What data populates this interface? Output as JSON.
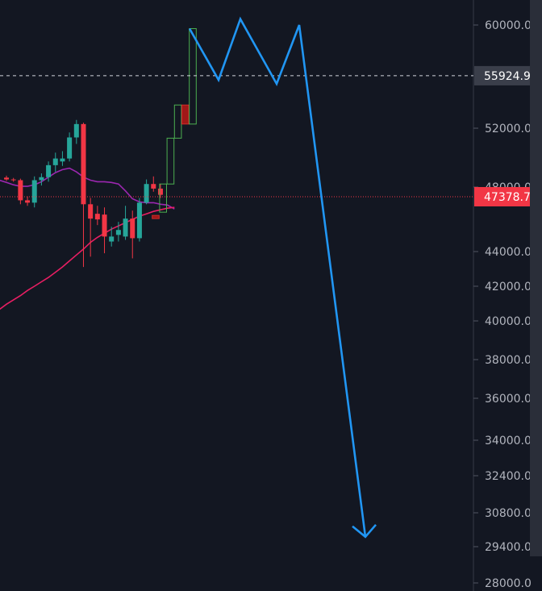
{
  "chart_data": {
    "type": "candlestick",
    "y_axis": {
      "ticks": [
        "60000.0",
        "52000.0",
        "48000.0",
        "44000.0",
        "42000.0",
        "40000.0",
        "38000.0",
        "36000.0",
        "34000.0",
        "32400.0",
        "30800.0",
        "29400.0",
        "28000.0"
      ],
      "tick_values": [
        60000,
        52000,
        48000,
        44000,
        42000,
        40000,
        38000,
        36000,
        34000,
        32400,
        30800,
        29400,
        28000
      ]
    },
    "price_labels": [
      {
        "name": "reference-price",
        "text": "55924.9",
        "value": 55924.9,
        "color": "#3a3e4a",
        "text_color": "#ffffff",
        "line": "dashed-white"
      },
      {
        "name": "last-price",
        "text": "47378.7",
        "value": 47378.7,
        "color": "#f23645",
        "text_color": "#ffffff",
        "line": "dotted-red"
      }
    ],
    "candles": [
      {
        "o": 48620,
        "h": 48750,
        "l": 48400,
        "c": 48500
      },
      {
        "o": 48500,
        "h": 48600,
        "l": 48350,
        "c": 48450
      },
      {
        "o": 48450,
        "h": 48550,
        "l": 46900,
        "c": 47150
      },
      {
        "o": 47150,
        "h": 47400,
        "l": 46800,
        "c": 47000
      },
      {
        "o": 47000,
        "h": 48700,
        "l": 46700,
        "c": 48450
      },
      {
        "o": 48450,
        "h": 48900,
        "l": 48100,
        "c": 48650
      },
      {
        "o": 48650,
        "h": 49700,
        "l": 48350,
        "c": 49450
      },
      {
        "o": 49450,
        "h": 50300,
        "l": 49000,
        "c": 49900
      },
      {
        "o": 49700,
        "h": 50400,
        "l": 49400,
        "c": 49900
      },
      {
        "o": 49900,
        "h": 51700,
        "l": 49700,
        "c": 51350
      },
      {
        "o": 51350,
        "h": 52600,
        "l": 50900,
        "c": 52300
      },
      {
        "o": 52300,
        "h": 52400,
        "l": 43100,
        "c": 46900
      },
      {
        "o": 46900,
        "h": 47300,
        "l": 43700,
        "c": 46000
      },
      {
        "o": 46300,
        "h": 46800,
        "l": 45600,
        "c": 45950
      },
      {
        "o": 46250,
        "h": 46700,
        "l": 43900,
        "c": 44900
      },
      {
        "o": 44600,
        "h": 45500,
        "l": 44300,
        "c": 44900
      },
      {
        "o": 45000,
        "h": 45800,
        "l": 44600,
        "c": 45300
      },
      {
        "o": 44900,
        "h": 46800,
        "l": 44700,
        "c": 46000
      },
      {
        "o": 46000,
        "h": 46500,
        "l": 43600,
        "c": 44800
      },
      {
        "o": 44800,
        "h": 47300,
        "l": 44600,
        "c": 47000
      },
      {
        "o": 47000,
        "h": 48500,
        "l": 46900,
        "c": 48200
      },
      {
        "o": 48200,
        "h": 48700,
        "l": 47700,
        "c": 47900
      },
      {
        "o": 47900,
        "h": 48200,
        "l": 47300,
        "c": 47500
      }
    ],
    "hypothetical_boxes": [
      {
        "from": 46200,
        "to": 46000,
        "direction": "down"
      },
      {
        "from": 46400,
        "to": 48200,
        "direction": "up"
      },
      {
        "from": 48200,
        "to": 51300,
        "direction": "up"
      },
      {
        "from": 51300,
        "to": 53700,
        "direction": "up"
      },
      {
        "from": 53700,
        "to": 52300,
        "direction": "down"
      },
      {
        "from": 52300,
        "to": 59700,
        "direction": "up"
      }
    ],
    "moving_averages": [
      {
        "color": "#9c27b0",
        "values": [
          48450,
          48300,
          48150,
          48050,
          48050,
          48150,
          48350,
          48650,
          48950,
          49150,
          49250,
          49000,
          48650,
          48450,
          48350,
          48350,
          48300,
          48200,
          47750,
          47250,
          47050,
          47000,
          47000,
          46900,
          46850,
          46600
        ]
      },
      {
        "color": "#e91e63",
        "values": [
          40650,
          40950,
          41200,
          41450,
          41750,
          42000,
          42250,
          42500,
          42800,
          43100,
          43450,
          43800,
          44150,
          44550,
          44850,
          45100,
          45350,
          45550,
          45750,
          45950,
          46150,
          46300,
          46450,
          46550,
          46650,
          46700
        ]
      }
    ],
    "projection_path": [
      {
        "price": 59700
      },
      {
        "price": 55600
      },
      {
        "price": 60500
      },
      {
        "price": 55300
      },
      {
        "price": 60000
      },
      {
        "price": 29800
      }
    ],
    "colors": {
      "up": "#26a69a",
      "down": "#f23645",
      "box_up": "#4caf50",
      "box_down": "#a01818",
      "projection": "#2196f3"
    }
  }
}
